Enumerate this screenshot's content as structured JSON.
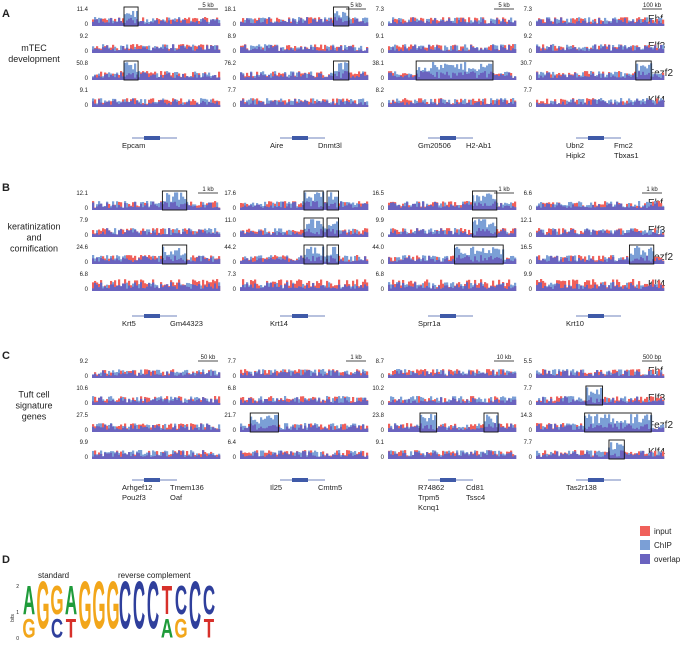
{
  "colors": {
    "input": "#f0605a",
    "chip": "#7b9fd6",
    "overlap": "#6a63bf",
    "gene": "#3f5aa8",
    "logo_g": "#f2a61a",
    "logo_c": "#2f3f9c",
    "logo_a": "#1f9b3a",
    "logo_t": "#d7302a"
  },
  "factors": [
    "Ehf",
    "Elf3",
    "Fezf2",
    "Klf4"
  ],
  "legend": [
    {
      "key": "input",
      "label": "input"
    },
    {
      "key": "chip",
      "label": "ChIP"
    },
    {
      "key": "overlap",
      "label": "overlap"
    }
  ],
  "panels": [
    {
      "letter": "A",
      "group_label": [
        "mTEC",
        "development"
      ],
      "columns": [
        {
          "scale": "5 kb",
          "ymax": [
            "11.4",
            "9.2",
            "50.8",
            "9.1"
          ],
          "genes": [
            "Epcam"
          ]
        },
        {
          "scale": "5 kb",
          "ymax": [
            "18.1",
            "8.9",
            "76.2",
            "7.7"
          ],
          "genes": [
            "Aire",
            "Dnmt3l"
          ]
        },
        {
          "scale": "5 kb",
          "ymax": [
            "7.3",
            "9.1",
            "38.1",
            "8.2"
          ],
          "genes": [
            "Gm20506",
            "H2-Ab1"
          ]
        },
        {
          "scale": "100 kb",
          "ymax": [
            "7.3",
            "9.2",
            "30.7",
            "7.7"
          ],
          "genes": [
            "Ubn2",
            "Fmc2",
            "Hipk2",
            "Tbxas1"
          ]
        }
      ]
    },
    {
      "letter": "B",
      "group_label": [
        "keratinization",
        "and",
        "cornification"
      ],
      "columns": [
        {
          "scale": "1 kb",
          "ymax": [
            "12.1",
            "7.9",
            "24.6",
            "6.8"
          ],
          "genes": [
            "Krt5",
            "Gm44323"
          ]
        },
        {
          "scale": "",
          "ymax": [
            "17.6",
            "11.0",
            "44.2",
            "7.3"
          ],
          "genes": [
            "Krt14"
          ]
        },
        {
          "scale": "1 kb",
          "ymax": [
            "16.5",
            "9.9",
            "44.0",
            "6.8"
          ],
          "genes": [
            "Sprr1a"
          ]
        },
        {
          "scale": "1 kb",
          "ymax": [
            "6.6",
            "12.1",
            "16.5",
            "9.9"
          ],
          "genes": [
            "Krt10"
          ]
        }
      ]
    },
    {
      "letter": "C",
      "group_label": [
        "Tuft cell",
        "signature",
        "genes"
      ],
      "columns": [
        {
          "scale": "50 kb",
          "ymax": [
            "9.2",
            "10.6",
            "27.5",
            "9.9"
          ],
          "genes": [
            "Arhgef12",
            "Tmem136",
            "Pou2f3",
            "Oaf"
          ]
        },
        {
          "scale": "1 kb",
          "ymax": [
            "7.7",
            "6.8",
            "21.7",
            "6.4"
          ],
          "genes": [
            "Il25",
            "Cmtm5"
          ]
        },
        {
          "scale": "10 kb",
          "ymax": [
            "8.7",
            "10.2",
            "23.8",
            "9.1"
          ],
          "genes": [
            "R74862",
            "Cd81",
            "Trpm5",
            "Tssc4",
            "Kcnq1"
          ]
        },
        {
          "scale": "500 bp",
          "ymax": [
            "5.5",
            "7.7",
            "14.3",
            "7.7"
          ],
          "genes": [
            "Tas2r138"
          ]
        }
      ]
    }
  ],
  "motif": {
    "letter": "D",
    "standard_label": "standard",
    "reverse_label": "reverse complement",
    "axis_label": "bits",
    "axis_ticks": [
      "2",
      "1",
      "0"
    ],
    "standard": [
      [
        "A",
        "G"
      ],
      [
        "G"
      ],
      [
        "G",
        "C"
      ],
      [
        "A",
        "T"
      ],
      [
        "G"
      ],
      [
        "G"
      ],
      [
        "G"
      ]
    ],
    "reverse": [
      [
        "C"
      ],
      [
        "C"
      ],
      [
        "C"
      ],
      [
        "T",
        "A"
      ],
      [
        "C",
        "G"
      ],
      [
        "C"
      ],
      [
        "C",
        "T"
      ]
    ]
  }
}
